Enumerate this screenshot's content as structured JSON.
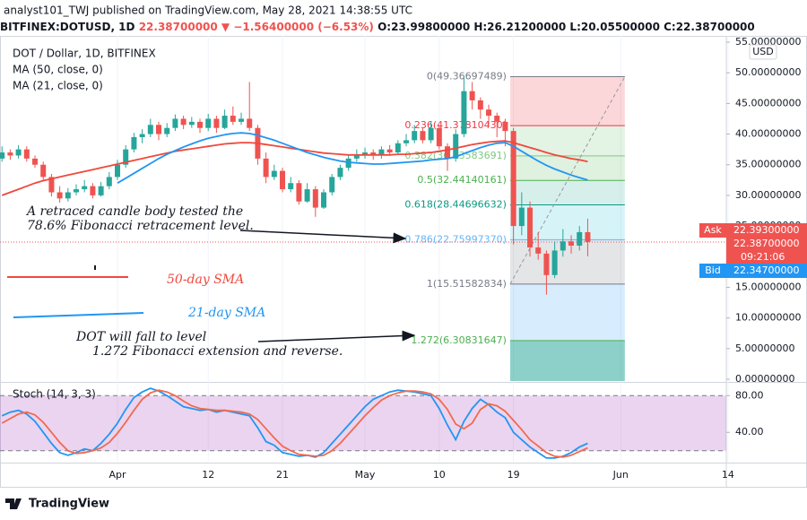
{
  "header": {
    "publisher": "analyst101_TWJ published on TradingView.com, May 28, 2021 14:38:55 UTC",
    "symbol": "BITFINEX:DOTUSD, 1D",
    "change": "22.38700000 ▼ −1.56400000 (−6.53%)",
    "ohlc": "O:23.99800000 H:26.21200000 L:20.05500000 C:22.38700000"
  },
  "legend": {
    "symbol": "DOT / Dollar, 1D, BITFINEX",
    "ma50": "MA (50, close, 0)",
    "ma21": "MA (21, close, 0)"
  },
  "annotations": {
    "retrace_1": "A retraced candle body tested the",
    "retrace_2": "78.6% Fibonacci retracement level.",
    "sma50": "50-day SMA",
    "sma21": "21-day SMA",
    "fall_1": "DOT will fall to  level",
    "fall_2": "1.272 Fibonacci extension and reverse."
  },
  "price_scale": {
    "currency": "USD",
    "ask_label": "Ask",
    "ask": "22.39300000",
    "last": {
      "value": 22.387,
      "label": "22.38700000"
    },
    "countdown": "09:21:06",
    "bid_label": "Bid",
    "bid": "22.34700000"
  },
  "footer": "TradingView",
  "chart_data": {
    "type": "candlestick",
    "up_color": "#26a69a",
    "down_color": "#ef5350",
    "xlim": [
      -0.24,
      87.8
    ],
    "xticks": [
      {
        "value": 14,
        "label": "Apr"
      },
      {
        "value": 25,
        "label": "12"
      },
      {
        "value": 34,
        "label": "21"
      },
      {
        "value": 44,
        "label": "May"
      },
      {
        "value": 53,
        "label": "10"
      },
      {
        "value": 62,
        "label": "19"
      },
      {
        "value": 75,
        "label": "Jun"
      },
      {
        "value": 88,
        "label": "14"
      }
    ],
    "ylim": [
      0,
      55
    ],
    "yticks": [
      {
        "value": 0,
        "label": "0.00000000"
      },
      {
        "value": 5,
        "label": "5.00000000"
      },
      {
        "value": 10,
        "label": "10.00000000"
      },
      {
        "value": 15,
        "label": "15.00000000"
      },
      {
        "value": 20,
        "label": "20.00000000"
      },
      {
        "value": 25,
        "label": "25.00000000"
      },
      {
        "value": 30,
        "label": "30.00000000"
      },
      {
        "value": 35,
        "label": "35.00000000"
      },
      {
        "value": 40,
        "label": "40.00000000"
      },
      {
        "value": 45,
        "label": "45.00000000"
      },
      {
        "value": 50,
        "label": "50.00000000"
      },
      {
        "value": 55,
        "label": "55.00000000"
      }
    ],
    "grid": true,
    "candles": [
      [
        36,
        38,
        35.5,
        37
      ],
      [
        37,
        37.5,
        35.8,
        36.5
      ],
      [
        36.5,
        38.2,
        36,
        37.5
      ],
      [
        37.5,
        38,
        35.5,
        36
      ],
      [
        36,
        36.5,
        34.5,
        35
      ],
      [
        35,
        35.5,
        32.5,
        33
      ],
      [
        33,
        33.5,
        29.8,
        30.5
      ],
      [
        30.5,
        31.5,
        28.8,
        29.5
      ],
      [
        29.5,
        31.2,
        29,
        30.5
      ],
      [
        30.5,
        31.8,
        30,
        31
      ],
      [
        31,
        32.5,
        30.5,
        31.5
      ],
      [
        31.5,
        32,
        29.5,
        30
      ],
      [
        30,
        32.2,
        29.8,
        31.5
      ],
      [
        31.5,
        33.8,
        31,
        33
      ],
      [
        33,
        35.8,
        32.5,
        35
      ],
      [
        35,
        38.2,
        34.5,
        37.5
      ],
      [
        37.5,
        40.2,
        37,
        39.5
      ],
      [
        39.5,
        40.8,
        38.5,
        40
      ],
      [
        40,
        42.5,
        39.5,
        41.5
      ],
      [
        41.5,
        42,
        39,
        40
      ],
      [
        40,
        41.8,
        39.5,
        41
      ],
      [
        41,
        43.2,
        40.5,
        42.5
      ],
      [
        42.5,
        43,
        40.8,
        41.5
      ],
      [
        41.5,
        42.8,
        41,
        42
      ],
      [
        42,
        42.5,
        40.2,
        41
      ],
      [
        41,
        43.3,
        40.5,
        42.5
      ],
      [
        42.5,
        43,
        40.2,
        41
      ],
      [
        41,
        44,
        40.8,
        43
      ],
      [
        43,
        44.5,
        41.5,
        42
      ],
      [
        42,
        43.5,
        41.5,
        42.5
      ],
      [
        42.5,
        48.5,
        40.5,
        41
      ],
      [
        41,
        41.5,
        35,
        36
      ],
      [
        36,
        37,
        32,
        33
      ],
      [
        33,
        35,
        32.5,
        34
      ],
      [
        34,
        34.5,
        30.5,
        31
      ],
      [
        31,
        33,
        30.5,
        32
      ],
      [
        32,
        32.5,
        28.5,
        29
      ],
      [
        29,
        32,
        28.8,
        31
      ],
      [
        31,
        31.5,
        26.5,
        28
      ],
      [
        28,
        31,
        27.8,
        30.5
      ],
      [
        30.5,
        33.5,
        30,
        33
      ],
      [
        33,
        35,
        32.5,
        34.5
      ],
      [
        34.5,
        36.5,
        34,
        36
      ],
      [
        36,
        37.5,
        35.5,
        36.5
      ],
      [
        36.5,
        37.8,
        36,
        37
      ],
      [
        37,
        37.5,
        35.8,
        36.5
      ],
      [
        36.5,
        38,
        36,
        37.5
      ],
      [
        37.5,
        38.2,
        36.5,
        37
      ],
      [
        37,
        39,
        36.8,
        38.5
      ],
      [
        38.5,
        40,
        38,
        39
      ],
      [
        39,
        41.5,
        38.5,
        40.5
      ],
      [
        40.5,
        41,
        38.5,
        39
      ],
      [
        39,
        42,
        38.5,
        41
      ],
      [
        41,
        41.5,
        37.5,
        38
      ],
      [
        38,
        38.5,
        34,
        36
      ],
      [
        36,
        40.8,
        35.5,
        40
      ],
      [
        40,
        49.4,
        39.5,
        47
      ],
      [
        47,
        48.5,
        44,
        45.5
      ],
      [
        45.5,
        46,
        42.5,
        44
      ],
      [
        44,
        44.8,
        41.5,
        43
      ],
      [
        43,
        43.5,
        39.5,
        42
      ],
      [
        42,
        42.5,
        38,
        40.5
      ],
      [
        40.5,
        41,
        22,
        25
      ],
      [
        25,
        30.5,
        23.5,
        28
      ],
      [
        28,
        29,
        20,
        21.5
      ],
      [
        21.5,
        24,
        19.5,
        20.5
      ],
      [
        20.5,
        21,
        13.8,
        17
      ],
      [
        17,
        22.5,
        16.5,
        21
      ],
      [
        21,
        24.5,
        20,
        22.5
      ],
      [
        22.5,
        23.5,
        20.5,
        21.8
      ],
      [
        21.8,
        25,
        21,
        24
      ],
      [
        23.998,
        26.212,
        20.055,
        22.387
      ]
    ],
    "series": [
      {
        "name": "MA (50, close, 0)",
        "color": "#f0483c",
        "values": [
          30,
          30.5,
          31,
          31.5,
          32,
          32.4,
          32.7,
          33,
          33.3,
          33.6,
          33.9,
          34.2,
          34.5,
          34.8,
          35.1,
          35.4,
          35.7,
          36,
          36.3,
          36.6,
          36.9,
          37.2,
          37.4,
          37.6,
          37.8,
          38,
          38.2,
          38.4,
          38.5,
          38.6,
          38.6,
          38.5,
          38.3,
          38.1,
          37.9,
          37.7,
          37.5,
          37.3,
          37.1,
          36.9,
          36.8,
          36.7,
          36.6,
          36.6,
          36.6,
          36.6,
          36.6,
          36.6,
          36.7,
          36.7,
          36.8,
          36.9,
          37,
          37.2,
          37.4,
          37.7,
          38,
          38.3,
          38.5,
          38.7,
          38.8,
          38.9,
          38.6,
          38.2,
          37.8,
          37.4,
          37,
          36.6,
          36.3,
          36,
          35.8,
          35.5
        ]
      },
      {
        "name": "MA (21, close, 0)",
        "color": "#2196f3",
        "values": [
          null,
          null,
          null,
          null,
          null,
          null,
          null,
          null,
          null,
          null,
          null,
          null,
          null,
          null,
          32,
          32.8,
          33.6,
          34.4,
          35.2,
          36,
          36.7,
          37.3,
          37.9,
          38.4,
          38.9,
          39.3,
          39.6,
          39.9,
          40.1,
          40.2,
          40.1,
          39.8,
          39.4,
          39,
          38.5,
          38,
          37.5,
          37,
          36.6,
          36.2,
          35.9,
          35.6,
          35.4,
          35.3,
          35.2,
          35.1,
          35.1,
          35.2,
          35.3,
          35.4,
          35.5,
          35.6,
          35.8,
          35.9,
          36,
          36.3,
          36.8,
          37.3,
          37.8,
          38.2,
          38.5,
          38.6,
          38,
          37.2,
          36.4,
          35.6,
          34.9,
          34.3,
          33.8,
          33.3,
          32.9,
          32.5
        ]
      }
    ],
    "fibonacci": {
      "start": 61.6,
      "end": 75.5,
      "levels": [
        {
          "value": 49.36697489,
          "label": "0(49.36697489)",
          "color": "#787b86",
          "fill": "rgba(242,54,69,0.2)"
        },
        {
          "value": 41.3781043,
          "label": "0.236(41.37810430)",
          "color": "#f23645",
          "fill": "rgba(129,199,132,0.22)"
        },
        {
          "value": 36.43583691,
          "label": "0.382(36.43583691)",
          "color": "#81c784",
          "fill": "rgba(76,175,80,0.18)"
        },
        {
          "value": 32.44140161,
          "label": "0.5(32.44140161)",
          "color": "#4caf50",
          "fill": "rgba(8,153,129,0.16)"
        },
        {
          "value": 28.44696632,
          "label": "0.618(28.44696632)",
          "color": "#089981",
          "fill": "rgba(0,188,212,0.16)"
        },
        {
          "value": 22.7599737,
          "label": "0.786(22.75997370)",
          "color": "#64b5f6",
          "fill": "rgba(120,123,134,0.2)"
        },
        {
          "value": 15.51582834,
          "label": "1(15.51582834)",
          "color": "#787b86",
          "fill": "rgba(33,150,243,0.18)"
        },
        {
          "value": 6.30831647,
          "label": "1.272(6.30831647)",
          "color": "#4caf50",
          "fill": "rgba(0,150,136,0.45)"
        }
      ]
    },
    "stoch": {
      "title": "Stoch (14, 3, 3)",
      "ylim": [
        8,
        93
      ],
      "yticks": [
        {
          "value": 80,
          "label": "80.00"
        },
        {
          "value": 40,
          "label": "40.00"
        }
      ],
      "bands": [
        80,
        20
      ],
      "band_fill": "rgba(156,39,176,0.2)",
      "series": [
        {
          "name": "%K",
          "color": "#2196f3",
          "values": [
            58,
            62,
            64,
            60,
            52,
            40,
            28,
            18,
            15,
            18,
            22,
            20,
            28,
            38,
            50,
            65,
            78,
            84,
            88,
            85,
            80,
            74,
            68,
            66,
            64,
            65,
            62,
            64,
            62,
            60,
            58,
            45,
            30,
            26,
            18,
            16,
            14,
            15,
            13,
            18,
            28,
            38,
            48,
            58,
            68,
            76,
            80,
            84,
            86,
            85,
            84,
            82,
            80,
            66,
            48,
            32,
            52,
            66,
            76,
            70,
            62,
            56,
            40,
            32,
            24,
            18,
            12,
            12,
            14,
            18,
            24,
            28
          ]
        },
        {
          "name": "%D",
          "color": "#f06a50",
          "values": [
            50,
            55,
            60,
            62,
            59,
            51,
            40,
            29,
            20,
            17,
            18,
            20,
            23,
            29,
            39,
            51,
            64,
            76,
            83,
            86,
            84,
            80,
            74,
            69,
            66,
            65,
            64,
            64,
            63,
            62,
            60,
            54,
            44,
            34,
            25,
            20,
            16,
            15,
            14,
            15,
            20,
            28,
            38,
            48,
            58,
            67,
            75,
            80,
            83,
            85,
            85,
            84,
            82,
            76,
            65,
            49,
            44,
            50,
            65,
            71,
            69,
            63,
            53,
            43,
            32,
            25,
            18,
            14,
            13,
            15,
            19,
            23
          ]
        }
      ]
    }
  }
}
